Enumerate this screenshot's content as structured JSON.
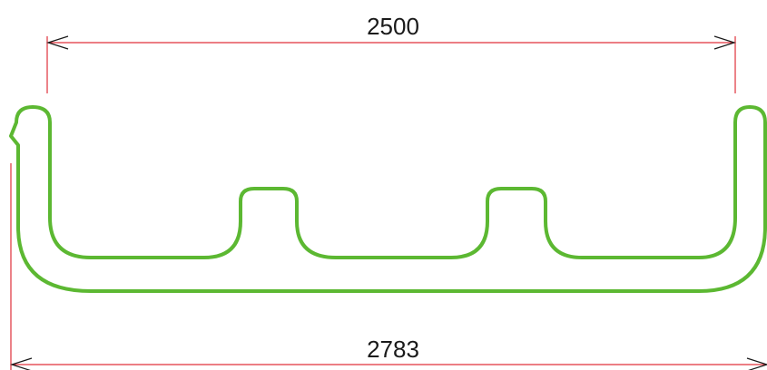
{
  "dimensions": {
    "top": {
      "value": "2500"
    },
    "bottom": {
      "value": "2783"
    }
  },
  "colors": {
    "profile_stroke": "#5cb832",
    "dimension_line": "#e0303a",
    "arrowhead": "#1a1a1a",
    "text": "#1a1a1a"
  }
}
